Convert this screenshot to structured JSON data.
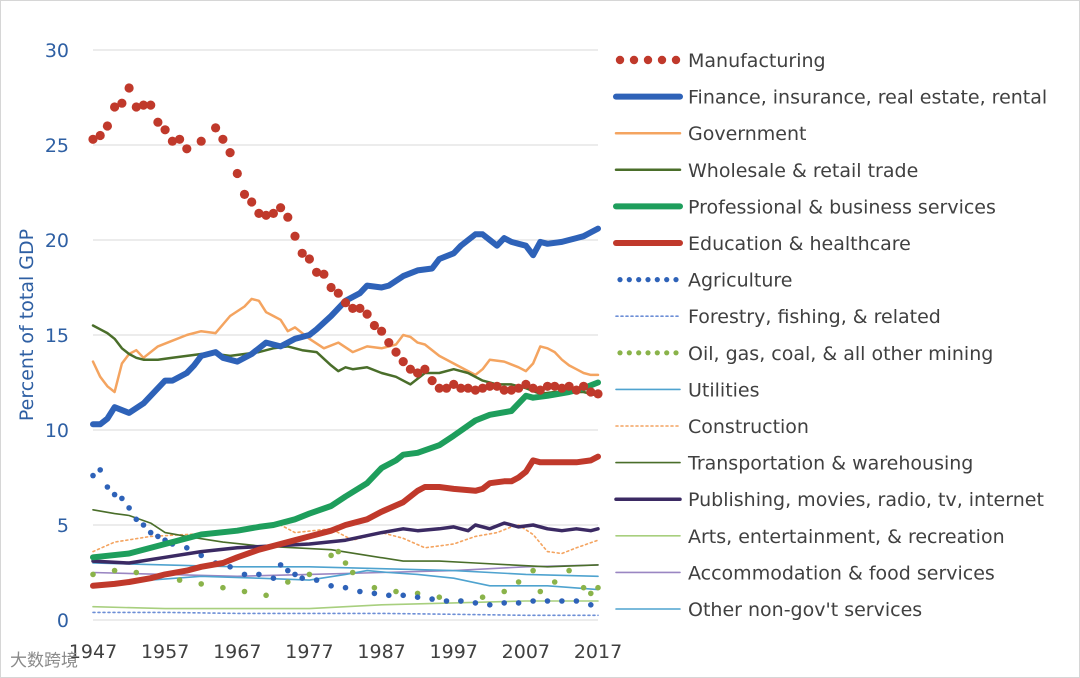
{
  "watermark": "大数跨境",
  "chart_data": {
    "type": "line",
    "title": "",
    "xlabel": "",
    "ylabel": "Percent of total GDP",
    "xlim": [
      1947,
      2017
    ],
    "ylim": [
      0,
      30
    ],
    "x_ticks": [
      "1947",
      "1957",
      "1967",
      "1977",
      "1987",
      "1997",
      "2007",
      "2017"
    ],
    "y_ticks": [
      "0",
      "5",
      "10",
      "15",
      "20",
      "25",
      "30"
    ],
    "grid": "horizontal",
    "legend": "right",
    "axis_color": "#2e5fa3",
    "series": [
      {
        "name": "Manufacturing",
        "color": "#c0392b",
        "style": "dots-large",
        "x": [
          1947,
          1948,
          1949,
          1950,
          1951,
          1952,
          1953,
          1954,
          1955,
          1956,
          1957,
          1958,
          1959,
          1960,
          1962,
          1964,
          1965,
          1966,
          1967,
          1968,
          1969,
          1970,
          1971,
          1972,
          1973,
          1974,
          1975,
          1976,
          1977,
          1978,
          1979,
          1980,
          1981,
          1982,
          1983,
          1984,
          1985,
          1986,
          1987,
          1988,
          1989,
          1990,
          1991,
          1992,
          1993,
          1994,
          1995,
          1996,
          1997,
          1998,
          1999,
          2000,
          2001,
          2002,
          2003,
          2004,
          2005,
          2006,
          2007,
          2008,
          2009,
          2010,
          2011,
          2012,
          2013,
          2014,
          2015,
          2016,
          2017
        ],
        "y": [
          25.3,
          25.5,
          26.0,
          27.0,
          27.2,
          28.0,
          27.0,
          27.1,
          27.1,
          26.2,
          25.8,
          25.2,
          25.3,
          24.8,
          25.2,
          25.9,
          25.3,
          24.6,
          23.5,
          22.4,
          22.0,
          21.4,
          21.3,
          21.4,
          21.7,
          21.2,
          20.2,
          19.3,
          19.0,
          18.3,
          18.2,
          17.5,
          17.2,
          16.7,
          16.4,
          16.4,
          16.1,
          15.5,
          15.2,
          14.6,
          14.1,
          13.6,
          13.2,
          13.0,
          13.2,
          12.6,
          12.2,
          12.2,
          12.4,
          12.2,
          12.2,
          12.1,
          12.2,
          12.3,
          12.3,
          12.1,
          12.1,
          12.2,
          12.4,
          12.2,
          12.1,
          12.3,
          12.3,
          12.2,
          12.3,
          12.1,
          12.3,
          12.0,
          11.9
        ]
      },
      {
        "name": "Finance, insurance, real estate, rental",
        "color": "#2e62b8",
        "style": "solid-thick",
        "x": [
          1947,
          1948,
          1949,
          1950,
          1952,
          1954,
          1955,
          1957,
          1958,
          1960,
          1961,
          1962,
          1964,
          1965,
          1967,
          1969,
          1970,
          1971,
          1973,
          1975,
          1977,
          1978,
          1980,
          1982,
          1984,
          1985,
          1987,
          1988,
          1990,
          1992,
          1994,
          1995,
          1997,
          1998,
          2000,
          2001,
          2002,
          2003,
          2004,
          2005,
          2006,
          2007,
          2008,
          2009,
          2010,
          2012,
          2013,
          2014,
          2015,
          2016,
          2017
        ],
        "y": [
          10.3,
          10.3,
          10.6,
          11.2,
          10.9,
          11.4,
          11.8,
          12.6,
          12.6,
          13.0,
          13.4,
          13.9,
          14.1,
          13.8,
          13.6,
          14.0,
          14.3,
          14.6,
          14.4,
          14.8,
          15.0,
          15.3,
          16.0,
          16.8,
          17.2,
          17.6,
          17.5,
          17.6,
          18.1,
          18.4,
          18.5,
          19.0,
          19.3,
          19.7,
          20.3,
          20.3,
          20.0,
          19.7,
          20.1,
          19.9,
          19.8,
          19.7,
          19.2,
          19.9,
          19.8,
          19.9,
          20.0,
          20.1,
          20.2,
          20.4,
          20.6
        ]
      },
      {
        "name": "Government",
        "color": "#f4a460",
        "style": "solid",
        "x": [
          1947,
          1948,
          1949,
          1950,
          1951,
          1952,
          1953,
          1954,
          1956,
          1958,
          1960,
          1962,
          1964,
          1966,
          1968,
          1969,
          1970,
          1971,
          1972,
          1973,
          1974,
          1975,
          1977,
          1979,
          1981,
          1983,
          1985,
          1987,
          1989,
          1990,
          1991,
          1992,
          1993,
          1995,
          1997,
          1999,
          2000,
          2001,
          2002,
          2004,
          2006,
          2007,
          2008,
          2009,
          2010,
          2011,
          2012,
          2013,
          2014,
          2015,
          2016,
          2017
        ],
        "y": [
          13.6,
          12.8,
          12.3,
          12.0,
          13.5,
          14.0,
          14.2,
          13.8,
          14.4,
          14.7,
          15.0,
          15.2,
          15.1,
          16.0,
          16.5,
          16.9,
          16.8,
          16.2,
          16.0,
          15.8,
          15.2,
          15.4,
          14.8,
          14.3,
          14.6,
          14.1,
          14.4,
          14.3,
          14.5,
          15.0,
          14.9,
          14.6,
          14.5,
          13.9,
          13.5,
          13.1,
          12.9,
          13.2,
          13.7,
          13.6,
          13.3,
          13.1,
          13.5,
          14.4,
          14.3,
          14.1,
          13.7,
          13.4,
          13.2,
          13.0,
          12.9,
          12.9
        ]
      },
      {
        "name": "Wholesale & retail trade",
        "color": "#4a6e2a",
        "style": "solid",
        "x": [
          1947,
          1948,
          1949,
          1950,
          1951,
          1952,
          1953,
          1954,
          1956,
          1958,
          1960,
          1962,
          1964,
          1966,
          1968,
          1970,
          1972,
          1974,
          1976,
          1978,
          1980,
          1981,
          1982,
          1983,
          1985,
          1987,
          1989,
          1991,
          1993,
          1995,
          1997,
          1999,
          2001,
          2003,
          2005,
          2007,
          2009,
          2011,
          2013,
          2015,
          2017
        ],
        "y": [
          15.5,
          15.3,
          15.1,
          14.8,
          14.3,
          14.0,
          13.8,
          13.7,
          13.7,
          13.8,
          13.9,
          14.0,
          14.0,
          13.9,
          14.0,
          14.1,
          14.3,
          14.4,
          14.2,
          14.1,
          13.4,
          13.1,
          13.3,
          13.2,
          13.3,
          13.0,
          12.8,
          12.4,
          13.0,
          13.0,
          13.2,
          13.0,
          12.6,
          12.4,
          12.4,
          12.2,
          11.9,
          12.0,
          12.0,
          12.0,
          11.8
        ]
      },
      {
        "name": "Professional & business services",
        "color": "#1e9e5c",
        "style": "solid-thick",
        "x": [
          1947,
          1952,
          1957,
          1962,
          1967,
          1970,
          1972,
          1975,
          1977,
          1980,
          1982,
          1985,
          1987,
          1989,
          1990,
          1992,
          1995,
          1997,
          2000,
          2002,
          2005,
          2007,
          2008,
          2010,
          2013,
          2015,
          2017
        ],
        "y": [
          3.3,
          3.5,
          4.0,
          4.5,
          4.7,
          4.9,
          5.0,
          5.3,
          5.6,
          6.0,
          6.5,
          7.2,
          8.0,
          8.4,
          8.7,
          8.8,
          9.2,
          9.7,
          10.5,
          10.8,
          11.0,
          11.8,
          11.7,
          11.8,
          12.0,
          12.2,
          12.5
        ]
      },
      {
        "name": "Education & healthcare",
        "color": "#c0392b",
        "style": "solid-thick",
        "x": [
          1947,
          1950,
          1952,
          1955,
          1957,
          1960,
          1962,
          1965,
          1967,
          1970,
          1972,
          1975,
          1977,
          1980,
          1982,
          1985,
          1987,
          1990,
          1992,
          1993,
          1995,
          1997,
          2000,
          2001,
          2002,
          2004,
          2005,
          2006,
          2007,
          2008,
          2009,
          2010,
          2012,
          2014,
          2016,
          2017
        ],
        "y": [
          1.8,
          1.9,
          2.0,
          2.2,
          2.4,
          2.6,
          2.8,
          3.0,
          3.3,
          3.7,
          3.9,
          4.2,
          4.4,
          4.7,
          5.0,
          5.3,
          5.7,
          6.2,
          6.8,
          7.0,
          7.0,
          6.9,
          6.8,
          6.9,
          7.2,
          7.3,
          7.3,
          7.5,
          7.8,
          8.4,
          8.3,
          8.3,
          8.3,
          8.3,
          8.4,
          8.6
        ]
      },
      {
        "name": "Agriculture",
        "color": "#2e62b8",
        "style": "dots",
        "x": [
          1947,
          1948,
          1949,
          1950,
          1951,
          1952,
          1953,
          1954,
          1955,
          1956,
          1957,
          1958,
          1960,
          1962,
          1964,
          1966,
          1968,
          1970,
          1972,
          1973,
          1974,
          1975,
          1976,
          1978,
          1980,
          1982,
          1984,
          1986,
          1988,
          1990,
          1992,
          1994,
          1996,
          1998,
          2000,
          2002,
          2004,
          2006,
          2008,
          2010,
          2012,
          2014,
          2016
        ],
        "y": [
          7.6,
          7.9,
          7.0,
          6.6,
          6.4,
          5.9,
          5.3,
          5.0,
          4.6,
          4.4,
          4.2,
          4.0,
          3.8,
          3.4,
          3.0,
          2.8,
          2.4,
          2.4,
          2.2,
          2.9,
          2.6,
          2.4,
          2.2,
          2.1,
          1.8,
          1.7,
          1.5,
          1.4,
          1.3,
          1.3,
          1.2,
          1.1,
          1.0,
          1.0,
          0.9,
          0.8,
          0.9,
          0.9,
          1.0,
          1.0,
          1.0,
          1.0,
          0.8
        ]
      },
      {
        "name": "Forestry, fishing, & related",
        "color": "#6d8fd6",
        "style": "dotted-thin",
        "x": [
          1947,
          1957,
          1967,
          1977,
          1987,
          1997,
          2007,
          2017
        ],
        "y": [
          0.4,
          0.4,
          0.35,
          0.35,
          0.35,
          0.3,
          0.25,
          0.25
        ]
      },
      {
        "name": "Oil, gas, coal, & all other mining",
        "color": "#8ab34a",
        "style": "dots",
        "x": [
          1947,
          1950,
          1953,
          1956,
          1959,
          1962,
          1965,
          1968,
          1971,
          1974,
          1977,
          1980,
          1981,
          1982,
          1983,
          1986,
          1989,
          1992,
          1995,
          1998,
          2001,
          2004,
          2006,
          2008,
          2009,
          2011,
          2013,
          2015,
          2016,
          2017
        ],
        "y": [
          2.4,
          2.6,
          2.5,
          2.3,
          2.1,
          1.9,
          1.7,
          1.5,
          1.3,
          2.0,
          2.4,
          3.4,
          3.6,
          3.0,
          2.5,
          1.7,
          1.5,
          1.4,
          1.2,
          1.0,
          1.2,
          1.5,
          2.0,
          2.6,
          1.5,
          2.0,
          2.6,
          1.7,
          1.4,
          1.7
        ]
      },
      {
        "name": "Utilities",
        "color": "#4fa3cf",
        "style": "solid-thin",
        "x": [
          1947,
          1955,
          1962,
          1970,
          1977,
          1982,
          1985,
          1988,
          1992,
          1997,
          2002,
          2005,
          2010,
          2017
        ],
        "y": [
          1.7,
          2.1,
          2.3,
          2.2,
          2.1,
          2.4,
          2.6,
          2.5,
          2.4,
          2.2,
          1.8,
          1.8,
          1.8,
          1.6
        ]
      },
      {
        "name": "Construction",
        "color": "#f4a460",
        "style": "dotted-thin",
        "x": [
          1947,
          1950,
          1955,
          1960,
          1965,
          1970,
          1973,
          1975,
          1980,
          1983,
          1987,
          1990,
          1993,
          1997,
          2000,
          2003,
          2005,
          2006,
          2008,
          2010,
          2012,
          2014,
          2017
        ],
        "y": [
          3.6,
          4.1,
          4.4,
          4.5,
          4.6,
          4.8,
          5.0,
          4.6,
          4.8,
          4.2,
          4.6,
          4.3,
          3.8,
          4.0,
          4.4,
          4.6,
          4.9,
          5.0,
          4.5,
          3.6,
          3.5,
          3.8,
          4.2
        ]
      },
      {
        "name": "Transportation & warehousing",
        "color": "#4a6e2a",
        "style": "solid-thin",
        "x": [
          1947,
          1950,
          1952,
          1955,
          1957,
          1960,
          1965,
          1970,
          1975,
          1980,
          1985,
          1990,
          1995,
          2000,
          2005,
          2010,
          2017
        ],
        "y": [
          5.8,
          5.6,
          5.5,
          5.1,
          4.6,
          4.4,
          4.1,
          3.9,
          3.8,
          3.7,
          3.4,
          3.1,
          3.1,
          3.0,
          2.9,
          2.8,
          2.9
        ]
      },
      {
        "name": "Publishing, movies, radio, tv, internet",
        "color": "#3b2a63",
        "style": "solid-medium",
        "x": [
          1947,
          1952,
          1957,
          1962,
          1967,
          1972,
          1977,
          1982,
          1987,
          1990,
          1992,
          1995,
          1997,
          1999,
          2000,
          2002,
          2004,
          2006,
          2008,
          2010,
          2012,
          2014,
          2016,
          2017
        ],
        "y": [
          3.1,
          3.0,
          3.3,
          3.6,
          3.8,
          3.9,
          4.0,
          4.2,
          4.6,
          4.8,
          4.7,
          4.8,
          4.9,
          4.7,
          5.0,
          4.8,
          5.1,
          4.9,
          5.0,
          4.8,
          4.7,
          4.8,
          4.7,
          4.8
        ]
      },
      {
        "name": "Arts, entertainment, & recreation",
        "color": "#a8cf7e",
        "style": "solid-thin",
        "x": [
          1947,
          1957,
          1967,
          1977,
          1987,
          1997,
          2007,
          2017
        ],
        "y": [
          0.7,
          0.6,
          0.6,
          0.6,
          0.8,
          0.9,
          1.0,
          1.0
        ]
      },
      {
        "name": "Accommodation & food services",
        "color": "#9a86c2",
        "style": "solid-thin",
        "x": [
          1947,
          1957,
          1967,
          1977,
          1987,
          1997,
          2007,
          2017
        ],
        "y": [
          2.5,
          2.4,
          2.3,
          2.4,
          2.5,
          2.6,
          2.8,
          2.9
        ]
      },
      {
        "name": "Other non-gov't services",
        "color": "#4fa3cf",
        "style": "solid-thin",
        "x": [
          1947,
          1957,
          1967,
          1977,
          1987,
          1997,
          2007,
          2017
        ],
        "y": [
          3.0,
          2.9,
          2.8,
          2.8,
          2.7,
          2.6,
          2.4,
          2.3
        ]
      }
    ]
  }
}
